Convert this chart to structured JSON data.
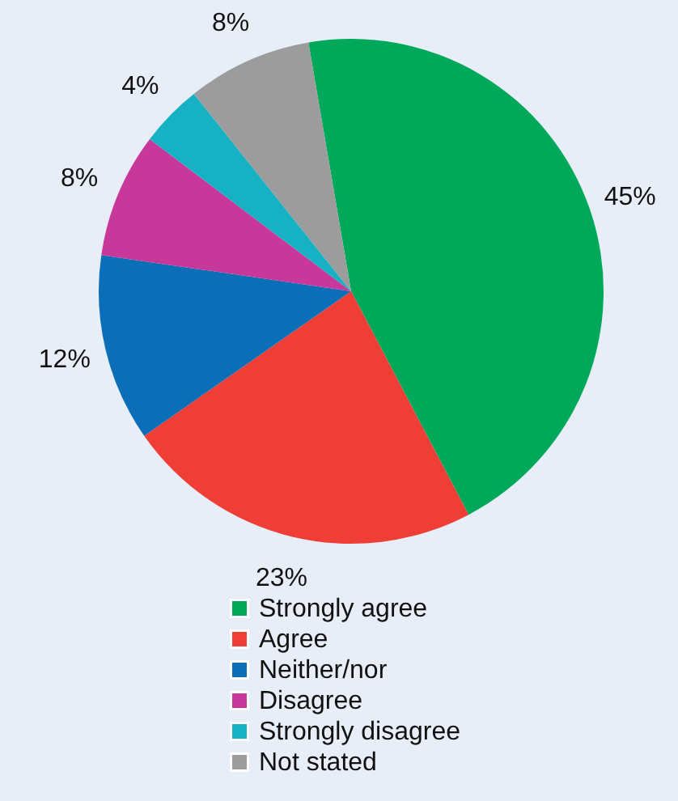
{
  "chart_data": {
    "type": "pie",
    "categories": [
      "Strongly agree",
      "Agree",
      "Neither/nor",
      "Disagree",
      "Strongly disagree",
      "Not stated"
    ],
    "values": [
      45,
      23,
      12,
      8,
      4,
      8
    ],
    "value_labels": [
      "45%",
      "23%",
      "12%",
      "8%",
      "4%",
      "8%"
    ],
    "colors": [
      "#00a85a",
      "#ee3e36",
      "#0b6fb8",
      "#c8379a",
      "#16b2c4",
      "#9c9c9c"
    ],
    "legend": "bottom"
  }
}
